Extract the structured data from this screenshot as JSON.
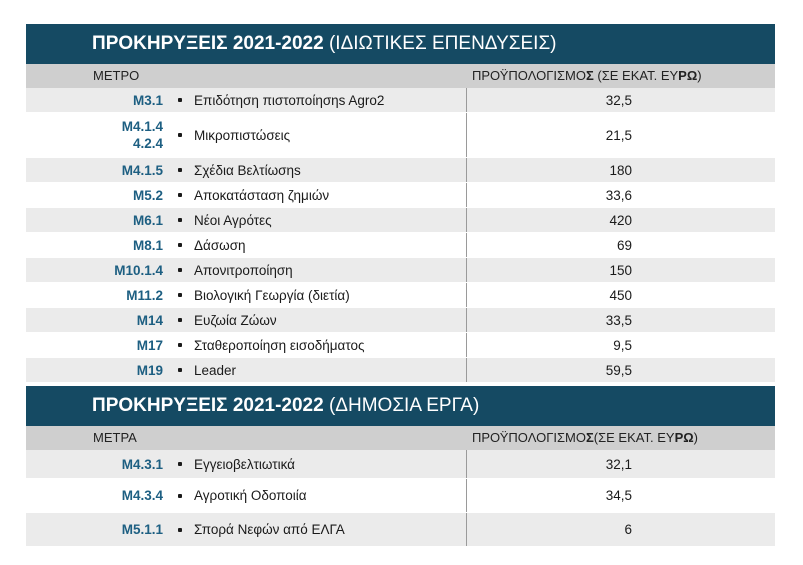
{
  "colors": {
    "banner": "#154a63",
    "code": "#1d5f82",
    "header_bg": "#cfcfcf",
    "row_alt": "#ebebeb"
  },
  "section1": {
    "title_bold": "ΠΡΟΚΗΡΥΞΕΙΣ 2021-2022",
    "title_light": "(ΙΔΙΩΤΙΚΕΣ ΕΠΕΝΔΥΣΕΙΣ)",
    "col_measure": "ΜΕΤΡΟ",
    "col_budget": "ΠΡΟΫΠΟΛΟΓΙΣΜΟ",
    "col_budget_bold": "Σ",
    "col_budget_unit": " (ΣΕ ΕΚΑΤ. ΕΥ",
    "col_budget_unit_bold": "ΡΩ",
    "col_budget_end": ")",
    "rows": [
      {
        "code": "Μ3.1",
        "name": "Επιδότηση πιστοποίησηs Agro2",
        "value": "32,5"
      },
      {
        "code": "Μ4.1.4\n4.2.4",
        "name": "Μικροπιστώσεις",
        "value": "21,5"
      },
      {
        "code": "Μ4.1.5",
        "name": "Σχέδια Βελτίωσηs",
        "value": "180"
      },
      {
        "code": "Μ5.2",
        "name": "Αποκατάσταση ζημιών",
        "value": "33,6"
      },
      {
        "code": "Μ6.1",
        "name": "Νέοι Αγρότες",
        "value": "420"
      },
      {
        "code": "Μ8.1",
        "name": "Δάσωση",
        "value": "69"
      },
      {
        "code": "Μ10.1.4",
        "name": "Απονιτροποίηση",
        "value": "150"
      },
      {
        "code": "Μ11.2",
        "name": "Βιολογική Γεωργία (διετία)",
        "value": "450"
      },
      {
        "code": "Μ14",
        "name": "Ευζωία Ζώων",
        "value": "33,5"
      },
      {
        "code": "Μ17",
        "name": "Σταθεροποίηση εισοδήματος",
        "value": "9,5"
      },
      {
        "code": "Μ19",
        "name": "Leader",
        "value": "59,5"
      }
    ]
  },
  "section2": {
    "title_bold": "ΠΡΟΚΗΡΥΞΕΙΣ 2021-2022",
    "title_light": "(ΔΗΜΟΣΙΑ ΕΡΓΑ)",
    "col_measure": "ΜΕΤΡΑ",
    "col_budget": "ΠΡΟΫΠΟΛΟΓΙΣΜΟ",
    "col_budget_bold": "Σ",
    "col_budget_unit": "(ΣΕ ΕΚΑΤ. ΕΥ",
    "col_budget_unit_bold": "ΡΩ",
    "col_budget_end": ")",
    "rows": [
      {
        "code": "Μ4.3.1",
        "name": "Εγγειοβελτιωτικά",
        "value": "32,1"
      },
      {
        "code": "Μ4.3.4",
        "name": "Αγροτική Οδοποιία",
        "value": "34,5"
      },
      {
        "code": "Μ5.1.1",
        "name": "Σπορά Νεφών από ΕΛΓΑ",
        "value": "6"
      }
    ]
  }
}
